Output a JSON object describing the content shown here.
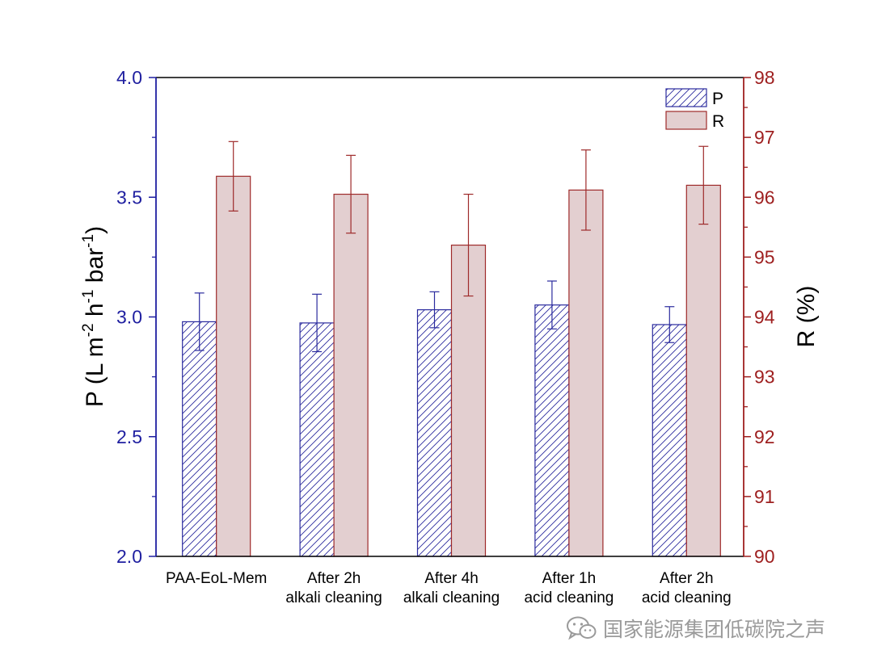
{
  "chart_data": {
    "type": "bar",
    "categories": [
      [
        "PAA-EoL-Mem"
      ],
      [
        "After 2h",
        "alkali cleaning"
      ],
      [
        "After 4h",
        "alkali cleaning"
      ],
      [
        "After 1h",
        "acid cleaning"
      ],
      [
        "After 2h",
        "acid cleaning"
      ]
    ],
    "series": [
      {
        "name": "P",
        "axis": "left",
        "values": [
          2.98,
          2.975,
          3.03,
          3.05,
          2.968
        ],
        "errors": [
          0.12,
          0.12,
          0.075,
          0.1,
          0.075
        ],
        "color": "#2b2b9e",
        "pattern": "hatch"
      },
      {
        "name": "R",
        "axis": "right",
        "values": [
          96.35,
          96.05,
          95.2,
          96.12,
          96.2
        ],
        "errors": [
          0.58,
          0.65,
          0.85,
          0.67,
          0.65
        ],
        "color": "#9e2a2a",
        "fill": "#e3cfd0"
      }
    ],
    "ylabel_left": {
      "main": "P (L m",
      "sup1": "-2",
      "mid1": " h",
      "sup2": "-1",
      "mid2": " bar",
      "sup3": "-1",
      "end": ")"
    },
    "ylabel_right": "R (%)",
    "ylim_left": [
      2.0,
      4.0
    ],
    "yticks_left": [
      2.0,
      2.5,
      3.0,
      3.5,
      4.0
    ],
    "ylim_right": [
      90,
      98
    ],
    "yticks_right": [
      90,
      91,
      92,
      93,
      94,
      95,
      96,
      97,
      98
    ],
    "left_axis_color": "#1f1fa0",
    "right_axis_color": "#9e1f1f",
    "legend": {
      "position": "top-right",
      "entries": [
        "P",
        "R"
      ]
    },
    "grid": false
  },
  "watermark": {
    "text": "国家能源集团低碳院之声",
    "icon": "wechat-icon"
  }
}
